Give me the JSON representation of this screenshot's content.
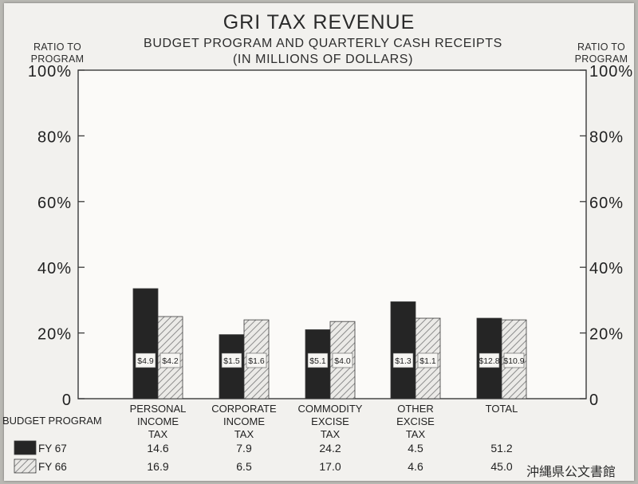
{
  "title": "GRI TAX REVENUE",
  "subtitle_line1": "BUDGET PROGRAM AND QUARTERLY CASH RECEIPTS",
  "subtitle_line2": "(IN MILLIONS OF DOLLARS)",
  "left_axis_title": "RATIO TO\nPROGRAM",
  "right_axis_title": "RATIO TO\nPROGRAM",
  "table": {
    "row_header": "BUDGET PROGRAM",
    "rows": [
      {
        "label": "FY 67",
        "swatch": "solid",
        "values": [
          "14.6",
          "7.9",
          "24.2",
          "4.5",
          "51.2"
        ]
      },
      {
        "label": "FY 66",
        "swatch": "hatched",
        "values": [
          "16.9",
          "6.5",
          "17.0",
          "4.6",
          "45.0"
        ]
      }
    ]
  },
  "stamp": "沖縄県公文書館",
  "colors": {
    "fy67": "#252525",
    "fy66_bg": "#ebeae7",
    "fy66_hatch": "#8c8c8c"
  },
  "chart_data": {
    "type": "bar",
    "title": "GRI TAX REVENUE",
    "ylabel": "RATIO TO PROGRAM",
    "ylim": [
      0,
      100
    ],
    "y_ticks": [
      "0",
      "20%",
      "40%",
      "60%",
      "80%",
      "100%"
    ],
    "y_tick_values": [
      0,
      20,
      40,
      60,
      80,
      100
    ],
    "categories": [
      "PERSONAL\nINCOME\nTAX",
      "CORPORATE\nINCOME\nTAX",
      "COMMODITY\nEXCISE\nTAX",
      "OTHER\nEXCISE\nTAX",
      "TOTAL"
    ],
    "series": [
      {
        "name": "FY 67",
        "style": "solid",
        "values": [
          33.5,
          19.5,
          21,
          29.5,
          24.5
        ],
        "labels": [
          "$4.9",
          "$1.5",
          "$5.1",
          "$1.3",
          "$12.8"
        ]
      },
      {
        "name": "FY 66",
        "style": "hatched",
        "values": [
          25,
          24,
          23.5,
          24.5,
          24
        ],
        "labels": [
          "$4.2",
          "$1.6",
          "$4.0",
          "$1.1",
          "$10.9"
        ]
      }
    ],
    "grid": false,
    "legend": "bottom-left"
  }
}
